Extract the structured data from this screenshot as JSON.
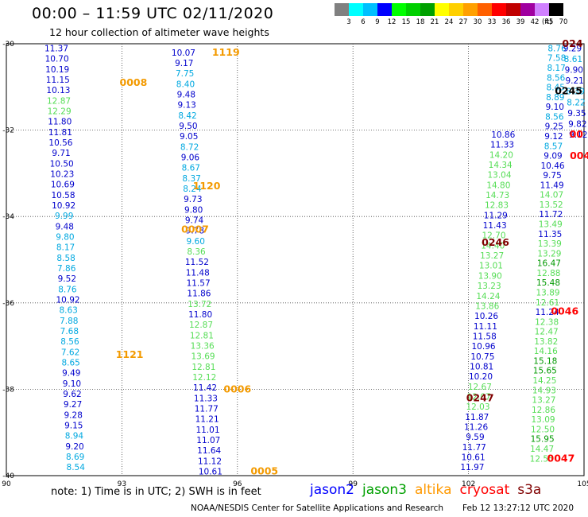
{
  "header": {
    "title": "00:00 – 11:59 UTC 02/11/2020",
    "subtitle": "12 hour collection of altimeter wave heights",
    "legend_unit": "(ft)"
  },
  "footer": {
    "note": "note: 1) Time is in UTC; 2) SWH is in feet",
    "credit": "NOAA/NESDIS Center for Satellite Applications and Research",
    "timestamp": "Feb 12 13:27:12 UTC 2020"
  },
  "satellites": [
    {
      "key": "jason2",
      "name": "jason2",
      "color": "#0000ff"
    },
    {
      "key": "jason3",
      "name": "jason3",
      "color": "#00a000"
    },
    {
      "key": "altika",
      "name": "altika",
      "color": "#ff9900"
    },
    {
      "key": "cryosat",
      "name": "cryosat",
      "color": "#ff0000"
    },
    {
      "key": "s3a",
      "name": "s3a",
      "color": "#800000"
    }
  ],
  "color_scale": [
    {
      "label": "3",
      "color": "#808080"
    },
    {
      "label": "6",
      "color": "#00ffff"
    },
    {
      "label": "9",
      "color": "#00c0ff"
    },
    {
      "label": "12",
      "color": "#0000ff"
    },
    {
      "label": "15",
      "color": "#00ff00"
    },
    {
      "label": "18",
      "color": "#00d000"
    },
    {
      "label": "21",
      "color": "#00a000"
    },
    {
      "label": "24",
      "color": "#ffff00"
    },
    {
      "label": "27",
      "color": "#ffd000"
    },
    {
      "label": "30",
      "color": "#ffa000"
    },
    {
      "label": "33",
      "color": "#ff6000"
    },
    {
      "label": "36",
      "color": "#ff0000"
    },
    {
      "label": "39",
      "color": "#c00000"
    },
    {
      "label": "42",
      "color": "#a000a0"
    },
    {
      "label": "45",
      "color": "#d080ff"
    },
    {
      "label": "70",
      "color": "#000000"
    }
  ],
  "chart_data": {
    "type": "scatter",
    "title": "00:00 – 11:59 UTC 02/11/2020",
    "subtitle": "12 hour collection of altimeter wave heights",
    "xlim": [
      90,
      105
    ],
    "ylim": [
      -40,
      -30
    ],
    "xticks": [
      90,
      93,
      96,
      99,
      102,
      105
    ],
    "yticks": [
      -30,
      -32,
      -34,
      -36,
      -38,
      -40
    ],
    "x_tick_labels": [
      "90",
      "93",
      "96",
      "99",
      "102",
      "105"
    ],
    "y_tick_labels": [
      "-30",
      "-32",
      "-34",
      "-36",
      "-38",
      "-40"
    ],
    "grid": true,
    "palette": {
      "blue": "#0000cc",
      "cyan": "#00a8e0",
      "lgreen": "#55dd55",
      "green": "#009900",
      "orange": "#f39a00",
      "red": "#ff0000",
      "maroon": "#800000",
      "black": "#000000"
    },
    "time_labels": [
      {
        "text": "1119",
        "x": 95.7,
        "y": -30.2,
        "c": "orange"
      },
      {
        "text": "0008",
        "x": 93.3,
        "y": -30.9,
        "c": "orange"
      },
      {
        "text": "1120",
        "x": 95.2,
        "y": -33.3,
        "c": "orange"
      },
      {
        "text": "0007",
        "x": 94.9,
        "y": -34.3,
        "c": "orange"
      },
      {
        "text": "1121",
        "x": 93.2,
        "y": -37.2,
        "c": "orange"
      },
      {
        "text": "0006",
        "x": 96.0,
        "y": -38.0,
        "c": "orange"
      },
      {
        "text": "0005",
        "x": 96.7,
        "y": -39.9,
        "c": "orange"
      },
      {
        "text": "024",
        "x": 104.7,
        "y": -30.0,
        "c": "maroon"
      },
      {
        "text": "0245",
        "x": 104.6,
        "y": -31.1,
        "c": "black"
      },
      {
        "text": "00",
        "x": 104.8,
        "y": -32.1,
        "c": "red"
      },
      {
        "text": "004",
        "x": 104.9,
        "y": -32.6,
        "c": "red"
      },
      {
        "text": "0246",
        "x": 102.7,
        "y": -34.6,
        "c": "maroon"
      },
      {
        "text": "0046",
        "x": 104.5,
        "y": -36.2,
        "c": "red"
      },
      {
        "text": "0247",
        "x": 102.3,
        "y": -38.2,
        "c": "maroon"
      },
      {
        "text": "0047",
        "x": 104.4,
        "y": -39.6,
        "c": "red"
      }
    ],
    "series": [
      {
        "satellite": "altika",
        "x": [
          91.3,
          91.8
        ],
        "y": [
          -30.1,
          -39.8
        ],
        "values": [
          [
            11.37,
            "blue"
          ],
          [
            10.7,
            "blue"
          ],
          [
            10.19,
            "blue"
          ],
          [
            11.15,
            "blue"
          ],
          [
            10.13,
            "blue"
          ],
          [
            12.87,
            "lgreen"
          ],
          [
            12.29,
            "lgreen"
          ],
          [
            11.8,
            "blue"
          ],
          [
            11.81,
            "blue"
          ],
          [
            10.56,
            "blue"
          ],
          [
            9.71,
            "blue"
          ],
          [
            10.5,
            "blue"
          ],
          [
            10.23,
            "blue"
          ],
          [
            10.69,
            "blue"
          ],
          [
            10.58,
            "blue"
          ],
          [
            10.92,
            "blue"
          ],
          [
            9.99,
            "cyan"
          ],
          [
            9.48,
            "blue"
          ],
          [
            9.8,
            "cyan"
          ],
          [
            8.17,
            "cyan"
          ],
          [
            8.58,
            "cyan"
          ],
          [
            7.86,
            "cyan"
          ],
          [
            9.52,
            "blue"
          ],
          [
            8.76,
            "cyan"
          ],
          [
            10.92,
            "blue"
          ],
          [
            8.63,
            "cyan"
          ],
          [
            7.88,
            "cyan"
          ],
          [
            7.68,
            "cyan"
          ],
          [
            8.56,
            "cyan"
          ],
          [
            7.62,
            "cyan"
          ],
          [
            8.65,
            "cyan"
          ],
          [
            9.49,
            "blue"
          ],
          [
            9.1,
            "blue"
          ],
          [
            9.62,
            "blue"
          ],
          [
            9.27,
            "blue"
          ],
          [
            9.28,
            "blue"
          ],
          [
            9.15,
            "blue"
          ],
          [
            8.94,
            "cyan"
          ],
          [
            9.2,
            "blue"
          ],
          [
            8.69,
            "cyan"
          ],
          [
            8.54,
            "cyan"
          ]
        ]
      },
      {
        "satellite": "altika",
        "x": [
          94.6,
          95.3
        ],
        "y": [
          -30.2,
          -39.9
        ],
        "values": [
          [
            10.07,
            "blue"
          ],
          [
            9.17,
            "blue"
          ],
          [
            7.75,
            "cyan"
          ],
          [
            8.4,
            "cyan"
          ],
          [
            9.48,
            "blue"
          ],
          [
            9.13,
            "blue"
          ],
          [
            8.42,
            "cyan"
          ],
          [
            9.5,
            "blue"
          ],
          [
            9.05,
            "blue"
          ],
          [
            8.72,
            "cyan"
          ],
          [
            9.06,
            "blue"
          ],
          [
            8.67,
            "cyan"
          ],
          [
            8.37,
            "cyan"
          ],
          [
            8.24,
            "cyan"
          ],
          [
            9.73,
            "blue"
          ],
          [
            9.8,
            "blue"
          ],
          [
            9.74,
            "blue"
          ],
          [
            9.78,
            "blue"
          ],
          [
            9.6,
            "cyan"
          ],
          [
            8.36,
            "lgreen"
          ],
          [
            11.52,
            "blue"
          ],
          [
            11.48,
            "blue"
          ],
          [
            11.57,
            "blue"
          ],
          [
            11.86,
            "blue"
          ],
          [
            13.72,
            "lgreen"
          ],
          [
            11.8,
            "blue"
          ],
          [
            12.87,
            "lgreen"
          ],
          [
            12.81,
            "lgreen"
          ],
          [
            13.36,
            "lgreen"
          ],
          [
            13.69,
            "lgreen"
          ],
          [
            12.81,
            "lgreen"
          ],
          [
            12.12,
            "lgreen"
          ],
          [
            11.42,
            "blue"
          ],
          [
            11.33,
            "blue"
          ],
          [
            11.77,
            "blue"
          ],
          [
            11.21,
            "blue"
          ],
          [
            11.01,
            "blue"
          ],
          [
            11.07,
            "blue"
          ],
          [
            11.64,
            "blue"
          ],
          [
            11.12,
            "blue"
          ],
          [
            10.61,
            "blue"
          ]
        ]
      },
      {
        "satellite": "jason3",
        "x": [
          102.1,
          102.9
        ],
        "y": [
          -39.8,
          -32.1
        ],
        "values": [
          [
            11.97,
            "blue"
          ],
          [
            10.61,
            "blue"
          ],
          [
            11.77,
            "blue"
          ],
          [
            9.59,
            "blue"
          ],
          [
            11.26,
            "blue"
          ],
          [
            11.87,
            "blue"
          ],
          [
            12.03,
            "lgreen"
          ],
          [
            12.07,
            "lgreen"
          ],
          [
            12.67,
            "lgreen"
          ],
          [
            10.2,
            "blue"
          ],
          [
            10.81,
            "blue"
          ],
          [
            10.75,
            "blue"
          ],
          [
            10.96,
            "blue"
          ],
          [
            11.58,
            "blue"
          ],
          [
            11.11,
            "blue"
          ],
          [
            10.26,
            "blue"
          ],
          [
            13.86,
            "lgreen"
          ],
          [
            14.24,
            "lgreen"
          ],
          [
            13.23,
            "lgreen"
          ],
          [
            13.9,
            "lgreen"
          ],
          [
            13.01,
            "lgreen"
          ],
          [
            13.27,
            "lgreen"
          ],
          [
            14.4,
            "lgreen"
          ],
          [
            12.7,
            "lgreen"
          ],
          [
            11.43,
            "blue"
          ],
          [
            11.29,
            "blue"
          ],
          [
            12.83,
            "lgreen"
          ],
          [
            14.73,
            "lgreen"
          ],
          [
            14.8,
            "lgreen"
          ],
          [
            13.04,
            "lgreen"
          ],
          [
            14.34,
            "lgreen"
          ],
          [
            14.2,
            "lgreen"
          ],
          [
            11.33,
            "blue"
          ],
          [
            10.86,
            "blue"
          ]
        ]
      },
      {
        "satellite": "jason3",
        "x": [
          103.9,
          104.3
        ],
        "y": [
          -39.6,
          -30.1
        ],
        "values": [
          [
            12.55,
            "lgreen"
          ],
          [
            14.47,
            "lgreen"
          ],
          [
            15.95,
            "green"
          ],
          [
            12.5,
            "lgreen"
          ],
          [
            13.09,
            "lgreen"
          ],
          [
            12.86,
            "lgreen"
          ],
          [
            13.27,
            "lgreen"
          ],
          [
            14.93,
            "lgreen"
          ],
          [
            14.25,
            "lgreen"
          ],
          [
            15.65,
            "green"
          ],
          [
            15.18,
            "green"
          ],
          [
            14.16,
            "lgreen"
          ],
          [
            13.82,
            "lgreen"
          ],
          [
            12.47,
            "lgreen"
          ],
          [
            12.38,
            "lgreen"
          ],
          [
            11.24,
            "blue"
          ],
          [
            12.61,
            "lgreen"
          ],
          [
            13.89,
            "lgreen"
          ],
          [
            15.48,
            "green"
          ],
          [
            12.88,
            "lgreen"
          ],
          [
            16.47,
            "green"
          ],
          [
            13.29,
            "lgreen"
          ],
          [
            13.39,
            "lgreen"
          ],
          [
            11.35,
            "blue"
          ],
          [
            13.49,
            "lgreen"
          ],
          [
            11.72,
            "blue"
          ],
          [
            13.52,
            "lgreen"
          ],
          [
            14.07,
            "lgreen"
          ],
          [
            11.49,
            "blue"
          ],
          [
            9.75,
            "blue"
          ],
          [
            10.46,
            "blue"
          ],
          [
            9.09,
            "blue"
          ],
          [
            8.57,
            "cyan"
          ],
          [
            9.12,
            "blue"
          ],
          [
            9.25,
            "blue"
          ],
          [
            8.56,
            "cyan"
          ],
          [
            9.1,
            "blue"
          ],
          [
            8.89,
            "cyan"
          ],
          [
            8.45,
            "cyan"
          ],
          [
            8.56,
            "cyan"
          ],
          [
            8.17,
            "cyan"
          ],
          [
            7.58,
            "cyan"
          ],
          [
            8.76,
            "cyan"
          ]
        ]
      },
      {
        "satellite": "jason3",
        "x": [
          104.7,
          104.85
        ],
        "y": [
          -30.1,
          -32.1
        ],
        "values": [
          [
            9.29,
            "blue"
          ],
          [
            8.61,
            "cyan"
          ],
          [
            9.9,
            "blue"
          ],
          [
            9.21,
            "blue"
          ],
          [
            8.39,
            "cyan"
          ],
          [
            8.22,
            "cyan"
          ],
          [
            9.35,
            "blue"
          ],
          [
            9.82,
            "blue"
          ],
          [
            9.12,
            "blue"
          ]
        ]
      }
    ]
  }
}
